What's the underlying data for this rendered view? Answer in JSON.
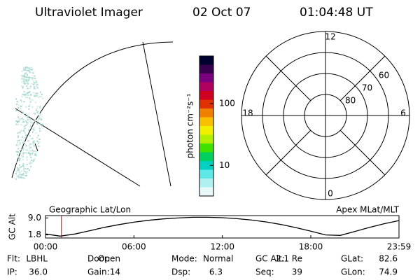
{
  "header": {
    "title": "Ultraviolet Imager",
    "date": "02 Oct 07",
    "time": "01:04:48 UT"
  },
  "chart_data": [
    {
      "type": "colorbar",
      "label": "photon cm⁻²s⁻¹",
      "log": true,
      "ylim": [
        3.2,
        590
      ],
      "yticks": [
        10,
        100
      ],
      "colors": [
        "#000030",
        "#3a0050",
        "#7a0080",
        "#b00060",
        "#d00020",
        "#e03000",
        "#f08000",
        "#f8c000",
        "#f0f000",
        "#b0f000",
        "#40e000",
        "#00d060",
        "#00d0c0",
        "#60e8e8",
        "#b0f0f0",
        "#e8f8f8"
      ]
    },
    {
      "type": "polar",
      "rlim": [
        90,
        50
      ],
      "rticks": [
        80,
        70,
        60
      ],
      "thetaticks": [
        12,
        18,
        6,
        0
      ]
    },
    {
      "type": "line",
      "ylabel": "GC Alt",
      "annotations": [
        "Geographic Lat/Lon",
        "Apex MLat/MLT"
      ],
      "x": [
        0,
        1,
        2,
        3,
        4,
        5,
        6,
        7,
        8,
        9,
        10,
        11,
        12,
        13,
        14,
        15,
        16,
        17,
        18,
        19,
        20,
        21,
        22,
        23,
        23.983
      ],
      "values": [
        2.2,
        1.3,
        2.2,
        3.6,
        5.0,
        6.2,
        7.2,
        8.0,
        8.6,
        9.0,
        9.3,
        9.3,
        9.1,
        8.7,
        8.1,
        7.3,
        6.2,
        4.9,
        3.4,
        1.8,
        1.6,
        3.3,
        5.0,
        6.6,
        7.9
      ],
      "color": "#000000",
      "xlim": [
        0,
        23.983
      ],
      "xticks": [
        {
          "value": 0,
          "label": "00:00"
        },
        {
          "value": 6,
          "label": "06:00"
        },
        {
          "value": 12,
          "label": "12:00"
        },
        {
          "value": 18,
          "label": "18:00"
        },
        {
          "value": 23.983,
          "label": "23:59"
        }
      ],
      "ylim": [
        0.5,
        10
      ],
      "yticks": [
        {
          "value": 9,
          "label": "9.0"
        },
        1.8
      ],
      "marker_x": 1.08,
      "marker_color": "#d00000"
    }
  ],
  "info": [
    [
      {
        "label": "Flt:",
        "value": "LBHL"
      },
      {
        "label": "Door:",
        "value": "Open"
      },
      {
        "label": "Mode:",
        "value": "Normal"
      },
      {
        "label": "GC Alt:",
        "value": "2.1 Re"
      },
      {
        "label": "GLat:",
        "value": "82.6"
      }
    ],
    [
      {
        "label": "IP:",
        "value": "36.0"
      },
      {
        "label": "Gain:",
        "value": "14"
      },
      {
        "label": "Dsp:",
        "value": "6.3"
      },
      {
        "label": "Seq:",
        "value": "39"
      },
      {
        "label": "GLon:",
        "value": "74.9"
      }
    ]
  ]
}
